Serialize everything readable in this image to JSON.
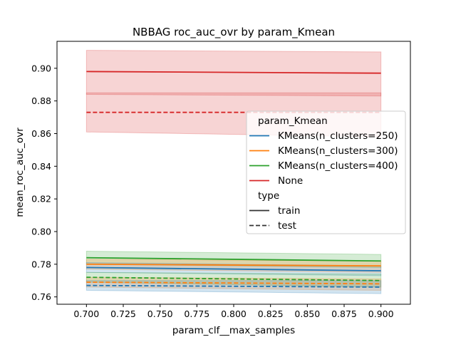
{
  "chart_data": {
    "type": "line",
    "title": "NBBAG roc_auc_ovr by param_Kmean",
    "xlabel": "param_clf__max_samples",
    "ylabel": "mean_roc_auc_ovr",
    "xlim": [
      0.68,
      0.92
    ],
    "ylim": [
      0.7555,
      0.9165
    ],
    "x_ticks": [
      0.7,
      0.725,
      0.75,
      0.775,
      0.8,
      0.825,
      0.85,
      0.875,
      0.9
    ],
    "y_ticks": [
      0.76,
      0.78,
      0.8,
      0.82,
      0.84,
      0.86,
      0.88,
      0.9
    ],
    "grid": false,
    "legend": {
      "placement": "center-right",
      "hue_title": "param_Kmean",
      "style_title": "type",
      "hue_entries": [
        {
          "label": "KMeans(n_clusters=250)",
          "color": "#1f77b4"
        },
        {
          "label": "KMeans(n_clusters=300)",
          "color": "#ff7f0e"
        },
        {
          "label": "KMeans(n_clusters=400)",
          "color": "#2ca02c"
        },
        {
          "label": "None",
          "color": "#d62728"
        }
      ],
      "style_entries": [
        {
          "label": "train",
          "dash": "solid"
        },
        {
          "label": "test",
          "dash": "dashed"
        }
      ]
    },
    "x": [
      0.7,
      0.9
    ],
    "series": [
      {
        "name": "None",
        "type": "train",
        "color": "#d62728",
        "values": [
          0.898,
          0.897
        ],
        "ci_low": [
          0.884,
          0.883
        ],
        "ci_high": [
          0.911,
          0.91
        ]
      },
      {
        "name": "None",
        "type": "test",
        "color": "#d62728",
        "values": [
          0.873,
          0.873
        ],
        "ci_low": [
          0.861,
          0.858
        ],
        "ci_high": [
          0.885,
          0.885
        ]
      },
      {
        "name": "KMeans(n_clusters=400)",
        "type": "train",
        "color": "#2ca02c",
        "values": [
          0.784,
          0.782
        ],
        "ci_low": [
          0.78,
          0.778
        ],
        "ci_high": [
          0.788,
          0.786
        ]
      },
      {
        "name": "KMeans(n_clusters=300)",
        "type": "train",
        "color": "#ff7f0e",
        "values": [
          0.78,
          0.779
        ],
        "ci_low": [
          0.777,
          0.775
        ],
        "ci_high": [
          0.783,
          0.782
        ]
      },
      {
        "name": "KMeans(n_clusters=250)",
        "type": "train",
        "color": "#1f77b4",
        "values": [
          0.778,
          0.776
        ],
        "ci_low": [
          0.775,
          0.773
        ],
        "ci_high": [
          0.781,
          0.779
        ]
      },
      {
        "name": "KMeans(n_clusters=400)",
        "type": "test",
        "color": "#2ca02c",
        "values": [
          0.772,
          0.77
        ],
        "ci_low": [
          0.769,
          0.766
        ],
        "ci_high": [
          0.775,
          0.774
        ]
      },
      {
        "name": "KMeans(n_clusters=300)",
        "type": "test",
        "color": "#ff7f0e",
        "values": [
          0.769,
          0.768
        ],
        "ci_low": [
          0.766,
          0.764
        ],
        "ci_high": [
          0.772,
          0.771
        ]
      },
      {
        "name": "KMeans(n_clusters=250)",
        "type": "test",
        "color": "#1f77b4",
        "values": [
          0.767,
          0.766
        ],
        "ci_low": [
          0.764,
          0.762
        ],
        "ci_high": [
          0.77,
          0.77
        ]
      }
    ]
  }
}
